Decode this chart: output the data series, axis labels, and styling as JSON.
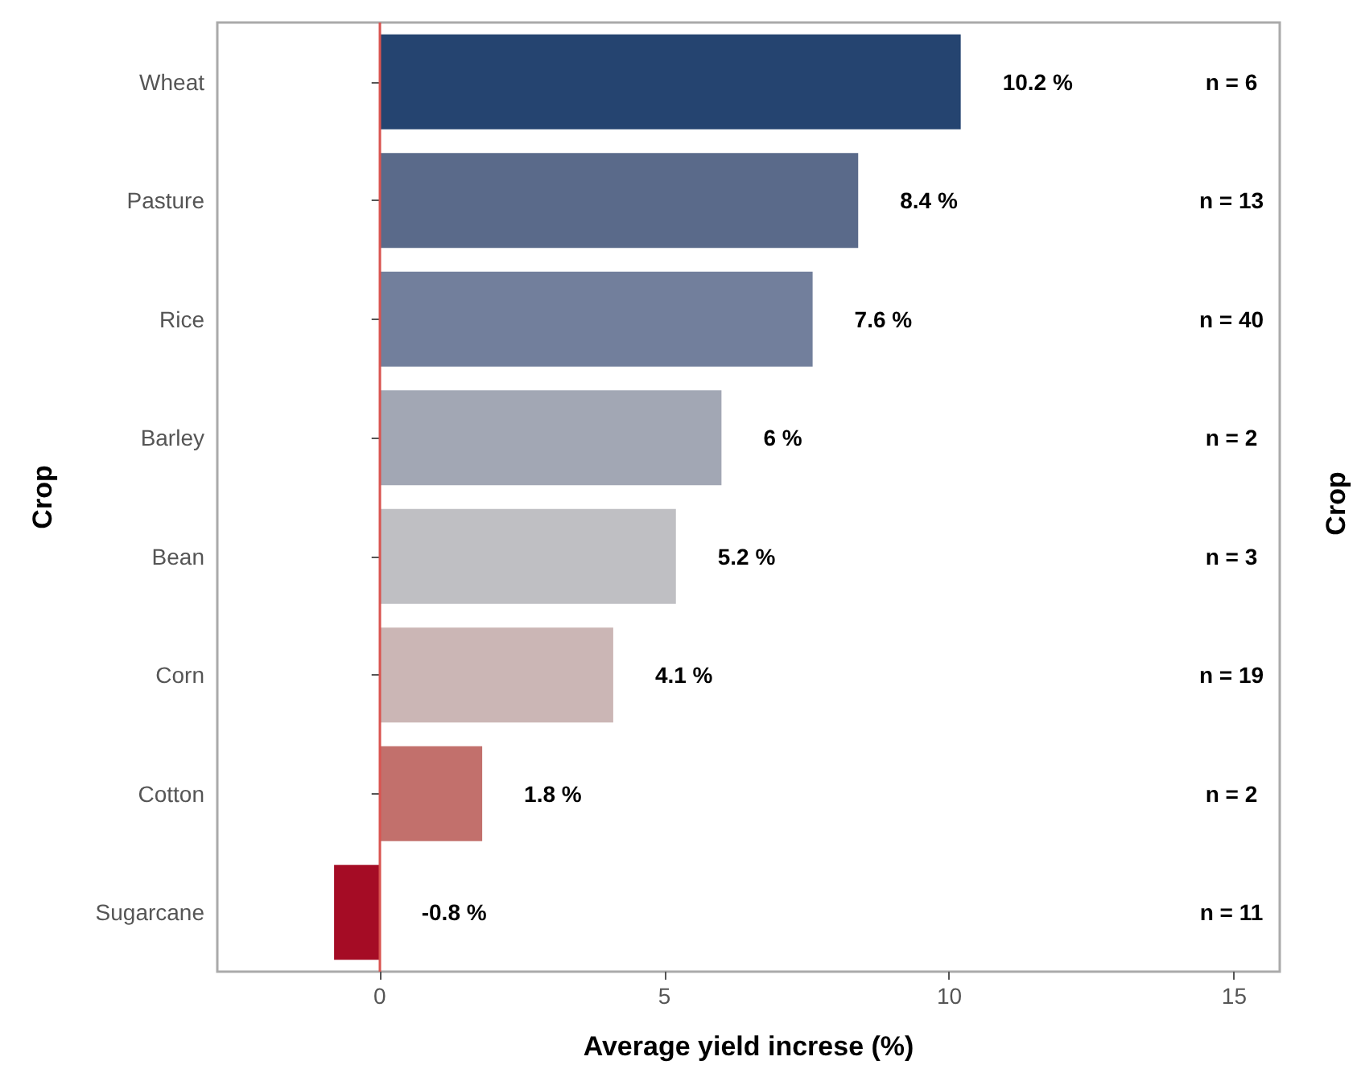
{
  "chart_data": {
    "type": "bar",
    "orientation": "horizontal",
    "xlabel": "Average yield increse (%)",
    "ylabel": "Crop",
    "y2label": "Crop",
    "categories": [
      "Wheat",
      "Pasture",
      "Rice",
      "Barley",
      "Bean",
      "Corn",
      "Cotton",
      "Sugarcane"
    ],
    "values": [
      10.2,
      8.4,
      7.6,
      6,
      5.2,
      4.1,
      1.8,
      -0.8
    ],
    "value_labels": [
      "10.2 %",
      "8.4 %",
      "7.6 %",
      "6 %",
      "5.2 %",
      "4.1 %",
      "1.8 %",
      "-0.8 %"
    ],
    "colors": [
      "#254470",
      "#5a6a8a",
      "#727f9c",
      "#a2a7b4",
      "#bfbfc3",
      "#cbb6b5",
      "#c2706c",
      "#a50c25"
    ],
    "xlim": [
      -2.85,
      15.8
    ],
    "xticks": [
      0,
      5,
      10,
      15
    ],
    "grid": false,
    "ref_lines": [
      {
        "axis": "x",
        "value": 0,
        "color": "#d9534f"
      }
    ],
    "annotations": [
      "n = 6",
      "n = 13",
      "n = 40",
      "n = 2",
      "n = 3",
      "n = 19",
      "n = 2",
      "n = 11"
    ]
  }
}
